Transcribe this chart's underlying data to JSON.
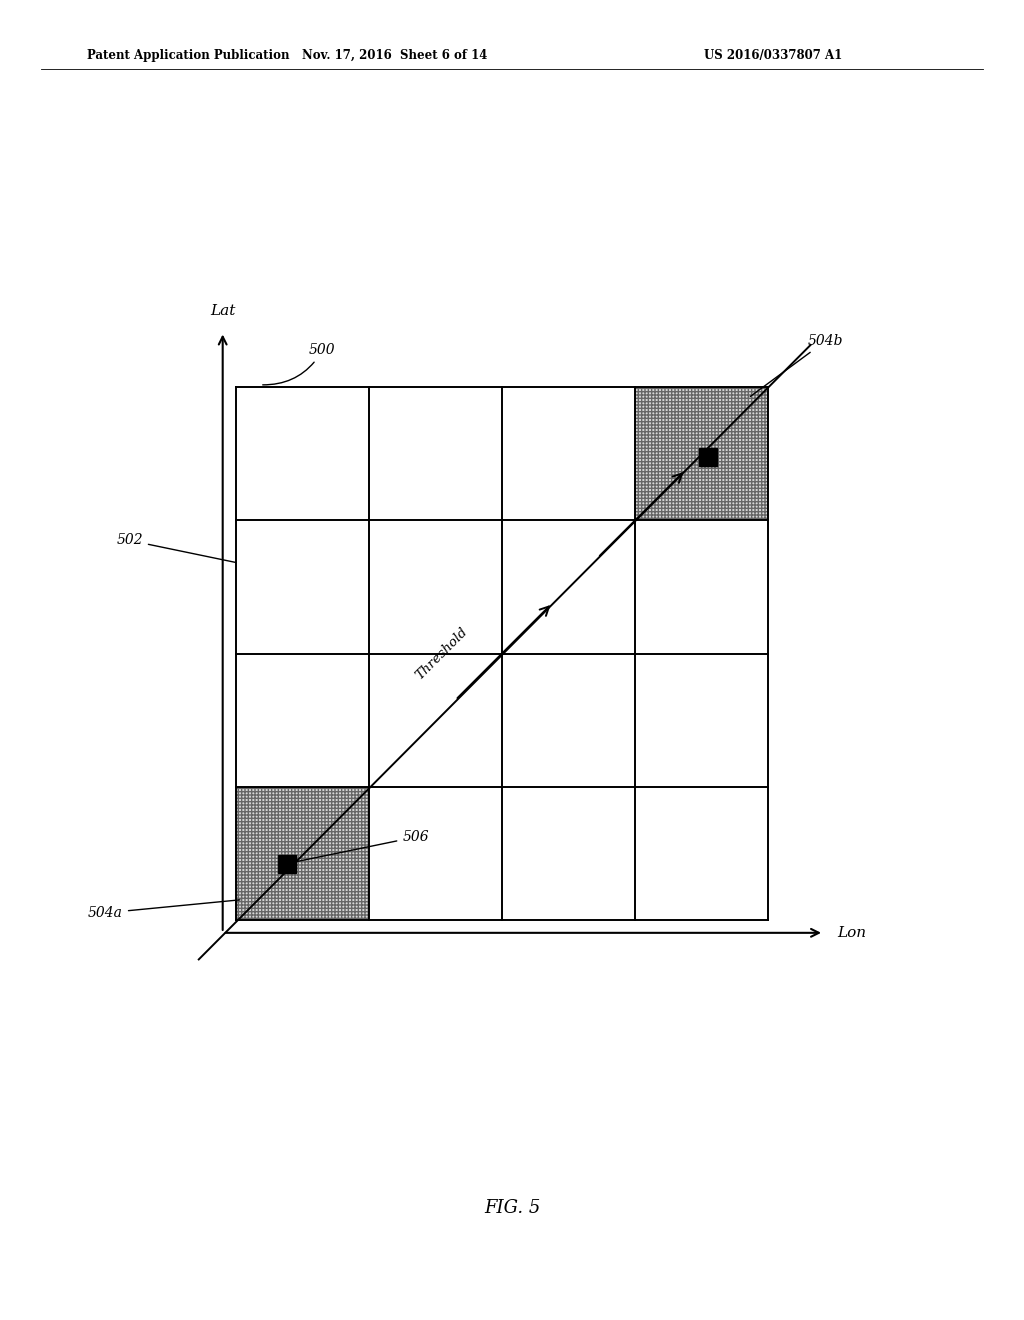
{
  "bg_color": "#ffffff",
  "fig_width": 10.24,
  "fig_height": 13.2,
  "header_left": "Patent Application Publication",
  "header_mid": "Nov. 17, 2016  Sheet 6 of 14",
  "header_right": "US 2016/0337807 A1",
  "caption": "FIG. 5",
  "lat_label": "Lat",
  "lon_label": "Lon",
  "label_500": "500",
  "label_502": "502",
  "label_504a": "504a",
  "label_504b": "504b",
  "label_506": "506",
  "threshold_label": "Threshold",
  "text_color": "#000000",
  "grid_color": "#000000"
}
